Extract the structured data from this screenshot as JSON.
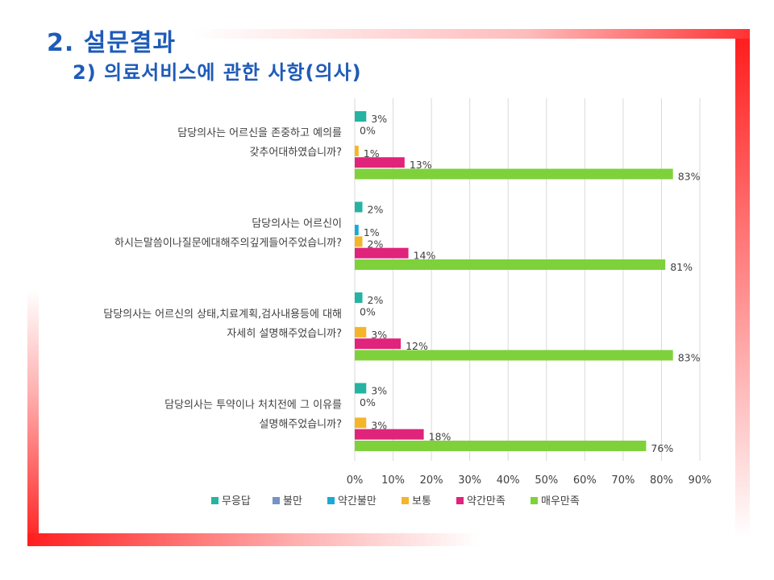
{
  "header": {
    "title": "2. 설문결과",
    "subtitle": "2) 의료서비스에 관한 사항(의사)"
  },
  "colors": {
    "무응답": "#26b3a3",
    "불만": "#7393c9",
    "약간불만": "#1aa9d6",
    "보통": "#f5b52a",
    "약간만족": "#e0237b",
    "매우만족": "#7ed13b",
    "title": "#1e5bb8",
    "frame": "#ff1e1e"
  },
  "chart_data": {
    "type": "bar",
    "orientation": "horizontal",
    "categories": [
      [
        "담당의사는 어르신을 존중하고 예의를",
        "갖추어대하였습니까?"
      ],
      [
        "담당의사는 어르신이",
        "하시는말씀이나질문에대해주의깊게들어주었습니까?"
      ],
      [
        "담당의사는 어르신의 상태,치료계획,검사내용등에 대해",
        "자세히 설명해주었습니까?"
      ],
      [
        "담당의사는 투약이나 처치전에 그 이유를",
        "설명해주었습니까?"
      ]
    ],
    "series": [
      {
        "name": "무응답",
        "values": [
          3,
          2,
          2,
          3
        ],
        "labels": [
          "3%",
          "2%",
          "2%",
          "3%"
        ]
      },
      {
        "name": "불만",
        "values": [
          null,
          null,
          null,
          null
        ],
        "labels": [
          "",
          "",
          "",
          ""
        ]
      },
      {
        "name": "약간불만",
        "values": [
          null,
          1,
          null,
          null
        ],
        "labels": [
          "",
          "1%",
          "",
          ""
        ]
      },
      {
        "name": "보통",
        "values": [
          1,
          2,
          3,
          3
        ],
        "labels": [
          "1%",
          "2%",
          "3%",
          "3%"
        ]
      },
      {
        "name": "약간만족",
        "values": [
          13,
          14,
          12,
          18
        ],
        "labels": [
          "13%",
          "14%",
          "12%",
          "18%"
        ]
      },
      {
        "name": "매우만족",
        "values": [
          83,
          81,
          83,
          76
        ],
        "labels": [
          "83%",
          "81%",
          "83%",
          "76%"
        ]
      }
    ],
    "zero_labels": [
      "0%",
      "",
      "0%",
      "0%"
    ],
    "xlim": [
      0,
      90
    ],
    "xticks": [
      "0%",
      "10%",
      "20%",
      "30%",
      "40%",
      "50%",
      "60%",
      "70%",
      "80%",
      "90%"
    ],
    "grid": true,
    "legend_position": "bottom",
    "legend": [
      "무응답",
      "불만",
      "약간불만",
      "보통",
      "약간만족",
      "매우만족"
    ]
  }
}
